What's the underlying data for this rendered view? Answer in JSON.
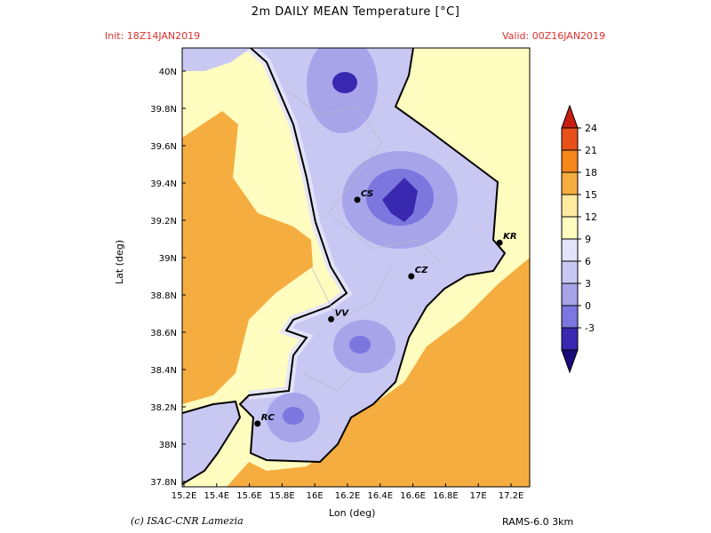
{
  "header": {
    "title": "2m DAILY MEAN Temperature [°C]",
    "init": "Init: 18Z14JAN2019",
    "valid": "Valid: 00Z16JAN2019"
  },
  "footer": {
    "credit": "(c) ISAC-CNR Lamezia",
    "model": "RAMS-6.0 3km"
  },
  "axes": {
    "xlabel": "Lon (deg)",
    "ylabel": "Lat (deg)",
    "xticks": [
      "15.2E",
      "15.4E",
      "15.6E",
      "15.8E",
      "16E",
      "16.2E",
      "16.4E",
      "16.6E",
      "16.8E",
      "17E",
      "17.2E"
    ],
    "yticks": [
      "37.8N",
      "38N",
      "38.2N",
      "38.4N",
      "38.6N",
      "38.8N",
      "39N",
      "39.2N",
      "39.4N",
      "39.6N",
      "39.8N",
      "40N"
    ]
  },
  "colorbar": {
    "levels": [
      "24",
      "21",
      "18",
      "15",
      "12",
      "9",
      "6",
      "3",
      "0",
      "-3"
    ],
    "colors": [
      "#c81d12",
      "#e8501a",
      "#f5871b",
      "#f5ad40",
      "#ffeaa0",
      "#fffcc0",
      "#e3e3fa",
      "#c9c8f3",
      "#a7a4ea",
      "#7c76df",
      "#3a28b0",
      "#1a0a7a"
    ]
  },
  "cities": [
    {
      "label": "CS",
      "lon": 16.26,
      "lat": 39.31
    },
    {
      "label": "KR",
      "lon": 17.13,
      "lat": 39.08
    },
    {
      "label": "CZ",
      "lon": 16.59,
      "lat": 38.9
    },
    {
      "label": "VV",
      "lon": 16.1,
      "lat": 38.67
    },
    {
      "label": "RC",
      "lon": 15.65,
      "lat": 38.11
    }
  ]
}
